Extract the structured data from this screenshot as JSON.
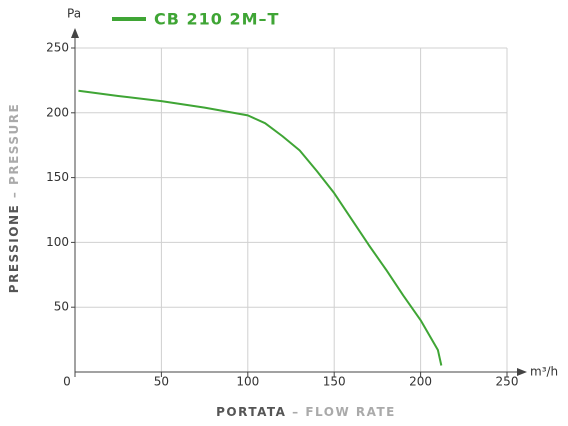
{
  "chart_data": {
    "type": "line",
    "ylabel_top": "Pa",
    "xlabel_right": "m³/h",
    "xlabel": [
      "PORTATA",
      "– FLOW RATE"
    ],
    "ylabel": [
      "PRESSIONE",
      "– PRESSURE"
    ],
    "x": [
      2,
      25,
      50,
      75,
      100,
      110,
      120,
      130,
      140,
      150,
      160,
      170,
      180,
      190,
      200,
      210,
      212
    ],
    "series": [
      {
        "name": "CB 210 2M–T",
        "color": "#3fa535",
        "values": [
          217,
          213,
          209,
          204,
          198,
          192,
          182,
          171,
          155,
          138,
          118,
          98,
          79,
          59,
          40,
          17,
          5
        ]
      }
    ],
    "xlim": [
      0,
      250
    ],
    "ylim": [
      0,
      250
    ],
    "xticks": [
      0,
      50,
      100,
      150,
      200,
      250
    ],
    "yticks": [
      50,
      100,
      150,
      200,
      250
    ],
    "grid": true
  }
}
